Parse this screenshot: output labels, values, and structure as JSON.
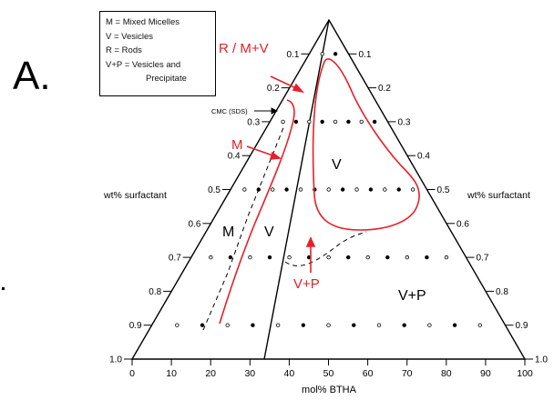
{
  "panel_label": "A.",
  "legend": [
    "M = Mixed Micelles",
    "V = Vesicles",
    "R = Rods",
    "V+P = Vesicles and",
    "Precipitate"
  ],
  "axes": {
    "bottom_label": "mol% BTHA",
    "bottom_ticks": [
      "0",
      "10",
      "20",
      "30",
      "40",
      "50",
      "60",
      "70",
      "80",
      "90",
      "100"
    ],
    "left_label": "wt% surfactant",
    "right_label": "wt% surfactant",
    "left_ticks": [
      "0.1",
      "0.2",
      "0.3",
      "0.4",
      "0.5",
      "0.6",
      "0.7",
      "0.8",
      "0.9",
      "1.0"
    ],
    "right_ticks": [
      "0.1",
      "0.2",
      "0.3",
      "0.4",
      "0.5",
      "0.6",
      "0.7",
      "0.8",
      "0.9",
      "1.0"
    ]
  },
  "annotations": {
    "rods_label": "R / M+V",
    "micelle_red_label": "M",
    "cmc_label": "CMC (SDS)",
    "vp_red_label": "V+P"
  },
  "regions": {
    "m": "M",
    "v_left": "V",
    "v_upper": "V",
    "vp": "V+P"
  },
  "colors": {
    "phase_boundary": "#e8202a",
    "axis": "#000000"
  }
}
